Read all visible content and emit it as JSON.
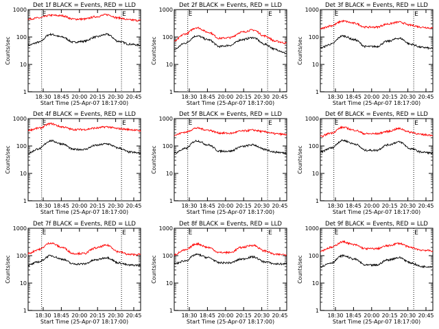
{
  "figure": {
    "x_tick_labels": [
      "18:30",
      "18:45",
      "20:00",
      "20:15",
      "20:30",
      "20:45"
    ],
    "xlabel": "Start Time (25-Apr-07 18:17:00)",
    "ylabel": "Counts/sec",
    "y_tick_labels": [
      "1",
      "10",
      "100",
      "1000"
    ],
    "marker_label": "E",
    "series_colors": {
      "events": "#000000",
      "lld": "#ff0000"
    }
  },
  "chart_data": [
    {
      "type": "line",
      "title": "Det 1f BLACK = Events, RED = LLD",
      "xlabel": "Start Time (25-Apr-07 18:17:00)",
      "ylabel": "Counts/sec",
      "ylim": [
        1,
        1000
      ],
      "yscale": "log",
      "xlim": [
        0,
        1
      ],
      "vlines": [
        0.12,
        0.83
      ],
      "series": [
        {
          "name": "Events",
          "color": "#000000",
          "x": [
            0.0,
            0.1,
            0.2,
            0.3,
            0.4,
            0.5,
            0.6,
            0.7,
            0.8,
            0.9,
            1.0
          ],
          "values": [
            50,
            65,
            125,
            100,
            65,
            70,
            100,
            125,
            70,
            55,
            50
          ]
        },
        {
          "name": "LLD",
          "color": "#ff0000",
          "x": [
            0.0,
            0.1,
            0.2,
            0.3,
            0.4,
            0.5,
            0.6,
            0.7,
            0.8,
            0.9,
            1.0
          ],
          "values": [
            450,
            500,
            620,
            600,
            450,
            450,
            550,
            650,
            500,
            420,
            400
          ]
        }
      ]
    },
    {
      "type": "line",
      "title": "Det 2f BLACK = Events, RED = LLD",
      "xlabel": "Start Time (25-Apr-07 18:17:00)",
      "ylabel": "Counts/sec",
      "ylim": [
        1,
        1000
      ],
      "yscale": "log",
      "xlim": [
        0,
        1
      ],
      "vlines": [
        0.12,
        0.83
      ],
      "series": [
        {
          "name": "Events",
          "color": "#000000",
          "x": [
            0.0,
            0.1,
            0.2,
            0.3,
            0.4,
            0.5,
            0.6,
            0.7,
            0.8,
            0.9,
            1.0
          ],
          "values": [
            35,
            60,
            110,
            80,
            45,
            50,
            80,
            95,
            55,
            35,
            25
          ]
        },
        {
          "name": "LLD",
          "color": "#ff0000",
          "x": [
            0.0,
            0.1,
            0.2,
            0.3,
            0.4,
            0.5,
            0.6,
            0.7,
            0.8,
            0.9,
            1.0
          ],
          "values": [
            70,
            130,
            220,
            150,
            90,
            95,
            150,
            180,
            110,
            70,
            60
          ]
        }
      ]
    },
    {
      "type": "line",
      "title": "Det 3f BLACK = Events, RED = LLD",
      "xlabel": "Start Time (25-Apr-07 18:17:00)",
      "ylabel": "Counts/sec",
      "ylim": [
        1,
        1000
      ],
      "yscale": "log",
      "xlim": [
        0,
        1
      ],
      "vlines": [
        0.12,
        0.83
      ],
      "series": [
        {
          "name": "Events",
          "color": "#000000",
          "x": [
            0.0,
            0.1,
            0.2,
            0.3,
            0.4,
            0.5,
            0.6,
            0.7,
            0.8,
            0.9,
            1.0
          ],
          "values": [
            40,
            55,
            110,
            80,
            45,
            45,
            70,
            90,
            55,
            42,
            38
          ]
        },
        {
          "name": "LLD",
          "color": "#ff0000",
          "x": [
            0.0,
            0.1,
            0.2,
            0.3,
            0.4,
            0.5,
            0.6,
            0.7,
            0.8,
            0.9,
            1.0
          ],
          "values": [
            200,
            260,
            380,
            320,
            230,
            230,
            300,
            350,
            270,
            230,
            210
          ]
        }
      ]
    },
    {
      "type": "line",
      "title": "Det 4f BLACK = Events, RED = LLD",
      "xlabel": "Start Time (25-Apr-07 18:17:00)",
      "ylabel": "Counts/sec",
      "ylim": [
        1,
        1000
      ],
      "yscale": "log",
      "xlim": [
        0,
        1
      ],
      "vlines": [
        0.12,
        0.83
      ],
      "series": [
        {
          "name": "Events",
          "color": "#000000",
          "x": [
            0.0,
            0.1,
            0.2,
            0.3,
            0.4,
            0.5,
            0.6,
            0.7,
            0.8,
            0.9,
            1.0
          ],
          "values": [
            55,
            80,
            155,
            120,
            75,
            75,
            105,
            120,
            85,
            60,
            55
          ]
        },
        {
          "name": "LLD",
          "color": "#ff0000",
          "x": [
            0.0,
            0.1,
            0.2,
            0.3,
            0.4,
            0.5,
            0.6,
            0.7,
            0.8,
            0.9,
            1.0
          ],
          "values": [
            380,
            450,
            650,
            500,
            400,
            400,
            450,
            500,
            430,
            400,
            360
          ]
        }
      ]
    },
    {
      "type": "line",
      "title": "Det 5f BLACK = Events, RED = LLD",
      "xlabel": "Start Time (25-Apr-07 18:17:00)",
      "ylabel": "Counts/sec",
      "ylim": [
        1,
        1000
      ],
      "yscale": "log",
      "xlim": [
        0,
        1
      ],
      "vlines": [
        0.12,
        0.83
      ],
      "series": [
        {
          "name": "Events",
          "color": "#000000",
          "x": [
            0.0,
            0.1,
            0.2,
            0.3,
            0.4,
            0.5,
            0.6,
            0.7,
            0.8,
            0.9,
            1.0
          ],
          "values": [
            55,
            80,
            155,
            110,
            65,
            65,
            95,
            110,
            75,
            60,
            55
          ]
        },
        {
          "name": "LLD",
          "color": "#ff0000",
          "x": [
            0.0,
            0.1,
            0.2,
            0.3,
            0.4,
            0.5,
            0.6,
            0.7,
            0.8,
            0.9,
            1.0
          ],
          "values": [
            250,
            320,
            450,
            380,
            300,
            290,
            350,
            380,
            330,
            280,
            260
          ]
        }
      ]
    },
    {
      "type": "line",
      "title": "Det 6f BLACK = Events, RED = LLD",
      "xlabel": "Start Time (25-Apr-07 18:17:00)",
      "ylabel": "Counts/sec",
      "ylim": [
        1,
        1000
      ],
      "yscale": "log",
      "xlim": [
        0,
        1
      ],
      "vlines": [
        0.12,
        0.83
      ],
      "series": [
        {
          "name": "Events",
          "color": "#000000",
          "x": [
            0.0,
            0.1,
            0.2,
            0.3,
            0.4,
            0.5,
            0.6,
            0.7,
            0.8,
            0.9,
            1.0
          ],
          "values": [
            60,
            85,
            160,
            120,
            70,
            70,
            110,
            140,
            80,
            60,
            55
          ]
        },
        {
          "name": "LLD",
          "color": "#ff0000",
          "x": [
            0.0,
            0.1,
            0.2,
            0.3,
            0.4,
            0.5,
            0.6,
            0.7,
            0.8,
            0.9,
            1.0
          ],
          "values": [
            220,
            300,
            480,
            380,
            280,
            280,
            340,
            430,
            320,
            260,
            250
          ]
        }
      ]
    },
    {
      "type": "line",
      "title": "Det 7f BLACK = Events, RED = LLD",
      "xlabel": "Start Time (25-Apr-07 18:17:00)",
      "ylabel": "Counts/sec",
      "ylim": [
        1,
        1000
      ],
      "yscale": "log",
      "xlim": [
        0,
        1
      ],
      "vlines": [
        0.12,
        0.83
      ],
      "series": [
        {
          "name": "Events",
          "color": "#000000",
          "x": [
            0.0,
            0.1,
            0.2,
            0.3,
            0.4,
            0.5,
            0.6,
            0.7,
            0.8,
            0.9,
            1.0
          ],
          "values": [
            45,
            60,
            100,
            75,
            50,
            50,
            70,
            85,
            55,
            45,
            45
          ]
        },
        {
          "name": "LLD",
          "color": "#ff0000",
          "x": [
            0.0,
            0.1,
            0.2,
            0.3,
            0.4,
            0.5,
            0.6,
            0.7,
            0.8,
            0.9,
            1.0
          ],
          "values": [
            120,
            170,
            290,
            200,
            120,
            120,
            190,
            240,
            140,
            110,
            110
          ]
        }
      ]
    },
    {
      "type": "line",
      "title": "Det 8f BLACK = Events, RED = LLD",
      "xlabel": "Start Time (25-Apr-07 18:17:00)",
      "ylabel": "Counts/sec",
      "ylim": [
        1,
        1000
      ],
      "yscale": "log",
      "xlim": [
        0,
        1
      ],
      "vlines": [
        0.12,
        0.83
      ],
      "series": [
        {
          "name": "Events",
          "color": "#000000",
          "x": [
            0.0,
            0.1,
            0.2,
            0.3,
            0.4,
            0.5,
            0.6,
            0.7,
            0.8,
            0.9,
            1.0
          ],
          "values": [
            50,
            65,
            110,
            85,
            55,
            55,
            75,
            90,
            60,
            50,
            50
          ]
        },
        {
          "name": "LLD",
          "color": "#ff0000",
          "x": [
            0.0,
            0.1,
            0.2,
            0.3,
            0.4,
            0.5,
            0.6,
            0.7,
            0.8,
            0.9,
            1.0
          ],
          "values": [
            110,
            160,
            270,
            200,
            130,
            130,
            200,
            240,
            150,
            110,
            110
          ]
        }
      ]
    },
    {
      "type": "line",
      "title": "Det 9f BLACK = Events, RED = LLD",
      "xlabel": "Start Time (25-Apr-07 18:17:00)",
      "ylabel": "Counts/sec",
      "ylim": [
        1,
        1000
      ],
      "yscale": "log",
      "xlim": [
        0,
        1
      ],
      "vlines": [
        0.12,
        0.83
      ],
      "series": [
        {
          "name": "Events",
          "color": "#000000",
          "x": [
            0.0,
            0.1,
            0.2,
            0.3,
            0.4,
            0.5,
            0.6,
            0.7,
            0.8,
            0.9,
            1.0
          ],
          "values": [
            40,
            55,
            100,
            75,
            45,
            45,
            70,
            85,
            55,
            40,
            40
          ]
        },
        {
          "name": "LLD",
          "color": "#ff0000",
          "x": [
            0.0,
            0.1,
            0.2,
            0.3,
            0.4,
            0.5,
            0.6,
            0.7,
            0.8,
            0.9,
            1.0
          ],
          "values": [
            150,
            200,
            320,
            250,
            180,
            180,
            230,
            280,
            200,
            160,
            150
          ]
        }
      ]
    }
  ]
}
